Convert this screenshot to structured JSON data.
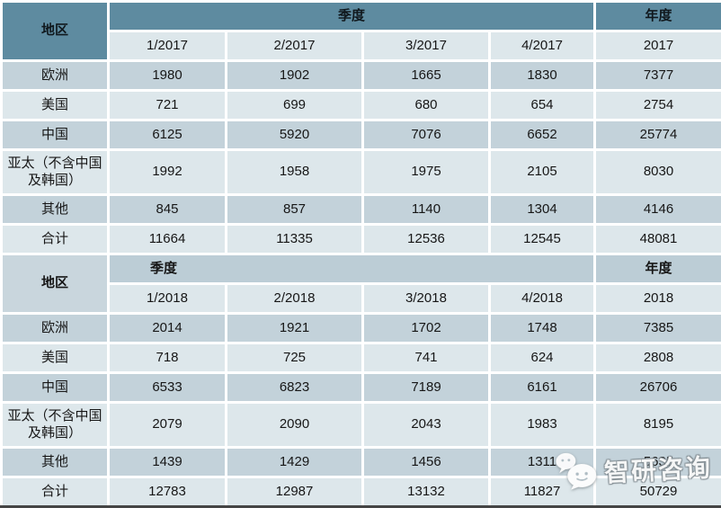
{
  "colors": {
    "header_dark_teal": "#5e8ba0",
    "section2_header_band": "#bccdd6",
    "section2_region_cell": "#c9d6dd",
    "row_dark": "#c3d2da",
    "row_light": "#dde7eb",
    "grid_line": "#ffffff",
    "bottom_border": "#454545",
    "text": "#161616"
  },
  "watermark": {
    "icon": "wechat-icon",
    "brand": "智研咨询"
  },
  "chart_data": {
    "type": "table",
    "sections": [
      {
        "style": "dark-header",
        "region_header": "地区",
        "quarter_header": "季度",
        "year_header": "年度",
        "quarter_cols": [
          "1/2017",
          "2/2017",
          "3/2017",
          "4/2017"
        ],
        "year_col": "2017",
        "rows": [
          {
            "region": "欧洲",
            "values": [
              "1980",
              "1902",
              "1665",
              "1830",
              "7377"
            ]
          },
          {
            "region": "美国",
            "values": [
              "721",
              "699",
              "680",
              "654",
              "2754"
            ]
          },
          {
            "region": "中国",
            "values": [
              "6125",
              "5920",
              "7076",
              "6652",
              "25774"
            ]
          },
          {
            "region": "亚太（不含中国及韩国）",
            "values": [
              "1992",
              "1958",
              "1975",
              "2105",
              "8030"
            ]
          },
          {
            "region": "其他",
            "values": [
              "845",
              "857",
              "1140",
              "1304",
              "4146"
            ]
          },
          {
            "region": "合计",
            "values": [
              "11664",
              "11335",
              "12536",
              "12545",
              "48081"
            ]
          }
        ]
      },
      {
        "style": "light-header",
        "region_header": "地区",
        "quarter_header": "季度",
        "year_header": "年度",
        "quarter_cols": [
          "1/2018",
          "2/2018",
          "3/2018",
          "4/2018"
        ],
        "year_col": "2018",
        "rows": [
          {
            "region": "欧洲",
            "values": [
              "2014",
              "1921",
              "1702",
              "1748",
              "7385"
            ]
          },
          {
            "region": "美国",
            "values": [
              "718",
              "725",
              "741",
              "624",
              "2808"
            ]
          },
          {
            "region": "中国",
            "values": [
              "6533",
              "6823",
              "7189",
              "6161",
              "26706"
            ]
          },
          {
            "region": "亚太（不含中国及韩国）",
            "values": [
              "2079",
              "2090",
              "2043",
              "1983",
              "8195"
            ]
          },
          {
            "region": "其他",
            "values": [
              "1439",
              "1429",
              "1456",
              "1311",
              "5635"
            ]
          },
          {
            "region": "合计",
            "values": [
              "12783",
              "12987",
              "13132",
              "11827",
              "50729"
            ]
          }
        ]
      }
    ]
  }
}
